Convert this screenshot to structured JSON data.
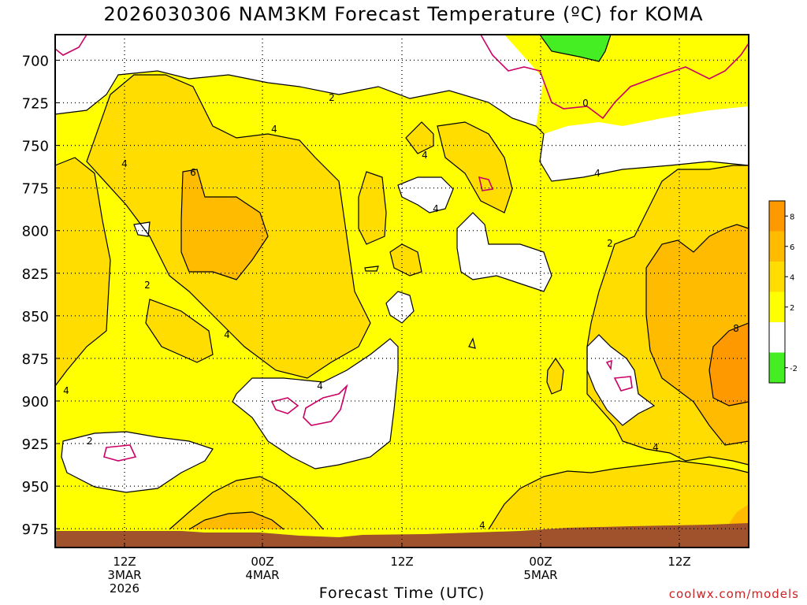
{
  "title": "2026030306 NAM3KM Forecast Temperature (ºC) for KOMA",
  "credit": "coolwx.com/models",
  "colors": {
    "c_neg": "#44ee22",
    "c0": "#ffffff",
    "c2": "#ffff00",
    "c4": "#ffdd00",
    "c6": "#ffbb00",
    "c8": "#ff9900",
    "ground": "#a0522d",
    "zero_line": "#cc0066"
  },
  "chart_data": {
    "type": "contour",
    "title": "2026030306 NAM3KM Forecast Temperature (ºC) for KOMA",
    "xlabel": "Forecast Time (UTC)",
    "ylabel": "",
    "y_ticks": [
      "700",
      "725",
      "750",
      "775",
      "800",
      "825",
      "850",
      "875",
      "900",
      "925",
      "950",
      "975"
    ],
    "y_range_hpa": [
      685,
      986
    ],
    "x_ticks": [
      {
        "lines": [
          "12Z",
          "3MAR",
          "2026"
        ]
      },
      {
        "lines": [
          "00Z",
          "4MAR"
        ]
      },
      {
        "lines": [
          "12Z"
        ]
      },
      {
        "lines": [
          "00Z",
          "5MAR"
        ]
      },
      {
        "lines": [
          "12Z"
        ]
      }
    ],
    "grid": true,
    "colorbar": {
      "levels": [
        -2,
        0,
        2,
        4,
        6,
        8,
        10
      ],
      "labels": [
        "8",
        "6",
        "4",
        "2",
        "-2"
      ],
      "placement": "right"
    },
    "contour_labels": [
      "2",
      "4",
      "0",
      "4",
      "4",
      "6",
      "4",
      "4",
      "2",
      "2",
      "4",
      "4",
      "4",
      "2",
      "4",
      "4",
      "8"
    ]
  }
}
